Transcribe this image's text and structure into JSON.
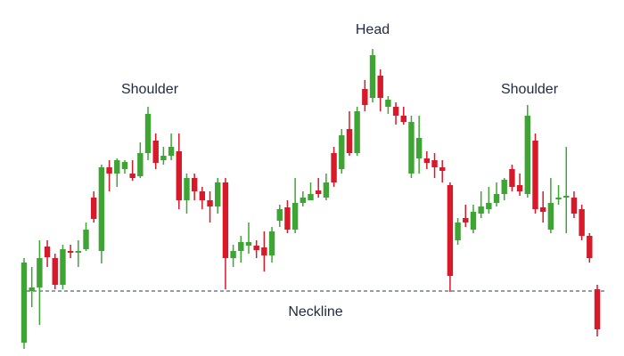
{
  "chart_data": {
    "type": "candlestick",
    "up_color": "#3ea535",
    "down_color": "#d7192a",
    "ylim": [
      0,
      400
    ],
    "annotations": [
      "Shoulder",
      "Head",
      "Shoulder"
    ],
    "neckline": {
      "label": "Neckline",
      "value": 73,
      "color": "#2b3a55"
    },
    "open": [
      15,
      73,
      77,
      123,
      110,
      80,
      118,
      116,
      120,
      178,
      118,
      212,
      205,
      210,
      205,
      202,
      228,
      242,
      220,
      225,
      230,
      175,
      200,
      185,
      175,
      168,
      195,
      110,
      118,
      124,
      124,
      122,
      113,
      152,
      167,
      142,
      172,
      175,
      186,
      178,
      228,
      210,
      255,
      228,
      300,
      290,
      315,
      280,
      280,
      270,
      205,
      222,
      222,
      220,
      212,
      192,
      130,
      155,
      142,
      160,
      165,
      172,
      182,
      210,
      192,
      182,
      242,
      167,
      142,
      176,
      178,
      178,
      165,
      135,
      75
    ],
    "high": [
      110,
      100,
      130,
      130,
      115,
      125,
      125,
      130,
      150,
      185,
      215,
      220,
      222,
      220,
      220,
      240,
      280,
      250,
      235,
      250,
      250,
      205,
      205,
      190,
      185,
      200,
      200,
      125,
      135,
      150,
      130,
      140,
      145,
      170,
      175,
      200,
      185,
      195,
      200,
      205,
      235,
      255,
      275,
      280,
      310,
      345,
      322,
      292,
      285,
      280,
      270,
      270,
      230,
      228,
      220,
      195,
      155,
      170,
      170,
      185,
      190,
      195,
      200,
      215,
      205,
      282,
      250,
      185,
      200,
      192,
      235,
      185,
      170,
      138,
      80
    ],
    "low": [
      8,
      55,
      35,
      100,
      75,
      75,
      110,
      100,
      118,
      150,
      104,
      185,
      190,
      205,
      197,
      200,
      220,
      210,
      215,
      220,
      165,
      160,
      175,
      165,
      150,
      160,
      75,
      100,
      105,
      115,
      110,
      95,
      105,
      145,
      138,
      138,
      168,
      175,
      178,
      175,
      190,
      205,
      225,
      225,
      275,
      285,
      275,
      272,
      260,
      260,
      200,
      205,
      210,
      200,
      195,
      72,
      125,
      145,
      138,
      155,
      160,
      168,
      175,
      185,
      180,
      178,
      160,
      150,
      138,
      170,
      138,
      155,
      130,
      105,
      22
    ],
    "close": [
      105,
      77,
      110,
      111,
      80,
      120,
      116,
      118,
      142,
      154,
      212,
      205,
      220,
      218,
      200,
      228,
      272,
      217,
      225,
      235,
      175,
      200,
      185,
      175,
      168,
      195,
      110,
      118,
      128,
      128,
      119,
      113,
      140,
      165,
      142,
      172,
      178,
      182,
      182,
      195,
      195,
      248,
      228,
      275,
      282,
      338,
      290,
      288,
      270,
      263,
      263,
      245,
      217,
      212,
      208,
      90,
      150,
      150,
      162,
      168,
      172,
      182,
      198,
      190,
      185,
      270,
      165,
      162,
      172,
      178,
      180,
      160,
      135,
      110,
      30
    ]
  }
}
